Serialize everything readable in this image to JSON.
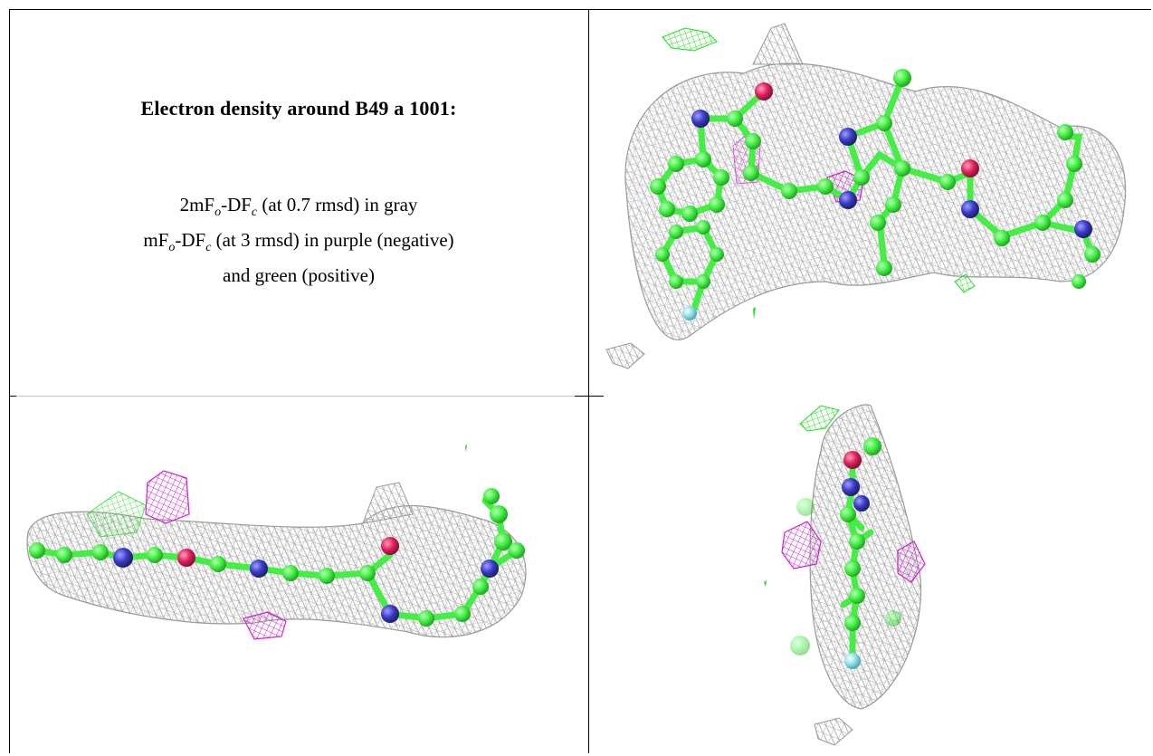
{
  "caption": {
    "title": "Electron density around B49 a 1001:",
    "line1_a": "2mF",
    "line1_sub1": "o",
    "line1_b": "-DF",
    "line1_sub2": "c",
    "line1_c": " (at 0.7 rmsd) in gray",
    "line2_a": "mF",
    "line2_sub1": "o",
    "line2_b": "-DF",
    "line2_sub2": "c",
    "line2_c": " (at 3 rmsd) in purple (negative)",
    "line3": "and green (positive)"
  },
  "colors": {
    "mesh_2fofc": "#b4b4b4",
    "mesh_negative": "#d020d0",
    "mesh_positive": "#22dd22",
    "carbon": "#55ee55",
    "nitrogen": "#3a3ac8",
    "oxygen": "#e0205a",
    "fluorine": "#8fe0e8"
  },
  "panels": [
    {
      "name": "density-view-top-right",
      "view": "front"
    },
    {
      "name": "density-view-bottom-left",
      "view": "side"
    },
    {
      "name": "density-view-bottom-right",
      "view": "end-on"
    }
  ]
}
